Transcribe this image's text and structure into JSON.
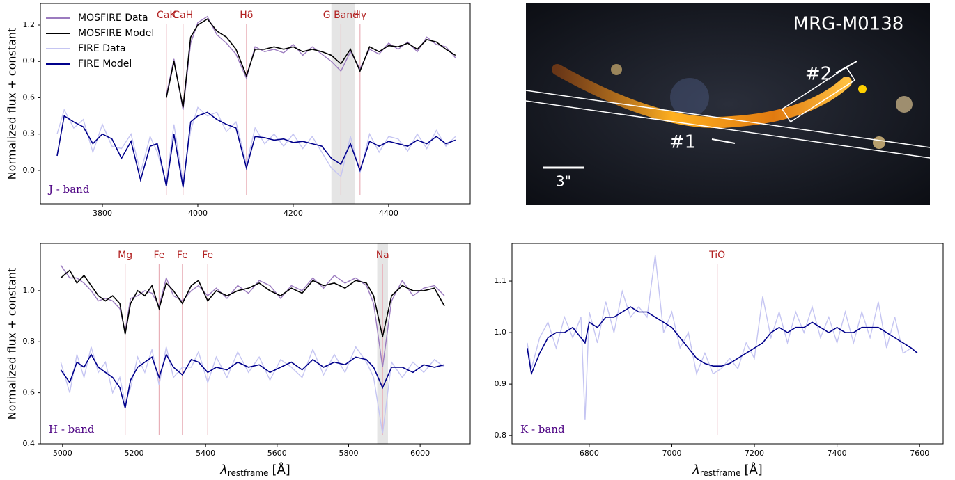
{
  "chart_data": [
    {
      "type": "line",
      "ylabel": "Normalized flux + constant",
      "band_label": "J - band",
      "legend": "upper left",
      "xlim": [
        3670,
        4571
      ],
      "ylim": [
        -0.276,
        1.378
      ],
      "xticks": [
        3800,
        4000,
        4200,
        4400
      ],
      "yticks": [
        {
          "value": 0,
          "label": "0.0"
        },
        0.3,
        0.6,
        0.9,
        1.2
      ],
      "span": [
        4280,
        4330
      ],
      "lines": [
        {
          "label": "CaK",
          "x": 3934
        },
        {
          "label": "CaH",
          "x": 3969
        },
        {
          "label": "Hδ",
          "x": 4102
        },
        {
          "label": "G Band",
          "x": 4300
        },
        {
          "label": "Hγ",
          "x": 4340
        }
      ],
      "x": [
        3705,
        3720,
        3740,
        3760,
        3780,
        3800,
        3820,
        3840,
        3860,
        3880,
        3900,
        3915,
        3934,
        3950,
        3969,
        3985,
        4000,
        4020,
        4040,
        4060,
        4080,
        4102,
        4120,
        4140,
        4160,
        4180,
        4200,
        4220,
        4240,
        4260,
        4280,
        4300,
        4320,
        4340,
        4360,
        4380,
        4400,
        4420,
        4440,
        4460,
        4480,
        4500,
        4520,
        4540
      ],
      "series": [
        {
          "name": "MOSFIRE Data",
          "color": "#9b7bbf",
          "values": [
            null,
            null,
            null,
            null,
            null,
            null,
            null,
            null,
            null,
            null,
            null,
            null,
            0.62,
            0.92,
            0.5,
            1.05,
            1.22,
            1.27,
            1.12,
            1.05,
            0.96,
            0.76,
            1.02,
            0.98,
            1.0,
            0.97,
            1.04,
            0.95,
            1.02,
            0.96,
            0.9,
            0.82,
            0.98,
            0.84,
            1.0,
            0.96,
            1.05,
            1.0,
            1.06,
            0.98,
            1.1,
            1.04,
            1.02,
            0.93
          ]
        },
        {
          "name": "MOSFIRE Model",
          "color": "#000000",
          "values": [
            null,
            null,
            null,
            null,
            null,
            null,
            null,
            null,
            null,
            null,
            null,
            null,
            0.6,
            0.9,
            0.52,
            1.1,
            1.2,
            1.25,
            1.15,
            1.1,
            1.0,
            0.78,
            1.0,
            1.0,
            1.02,
            1.0,
            1.02,
            0.98,
            1.0,
            0.98,
            0.95,
            0.88,
            1.0,
            0.82,
            1.02,
            0.98,
            1.03,
            1.02,
            1.05,
            1.0,
            1.08,
            1.06,
            1.0,
            0.95
          ]
        },
        {
          "name": "FIRE Data",
          "color": "#c5c5f2",
          "values": [
            0.3,
            0.5,
            0.35,
            0.42,
            0.15,
            0.38,
            0.2,
            0.18,
            0.3,
            -0.02,
            0.28,
            0.15,
            -0.1,
            0.38,
            -0.1,
            0.33,
            0.52,
            0.45,
            0.48,
            0.32,
            0.4,
            0.05,
            0.35,
            0.22,
            0.3,
            0.2,
            0.3,
            0.18,
            0.28,
            0.15,
            0.02,
            -0.05,
            0.28,
            -0.02,
            0.3,
            0.15,
            0.28,
            0.26,
            0.16,
            0.3,
            0.18,
            0.33,
            0.2,
            0.28
          ]
        },
        {
          "name": "FIRE Model",
          "color": "#00008b",
          "values": [
            0.12,
            0.45,
            0.4,
            0.36,
            0.22,
            0.3,
            0.26,
            0.1,
            0.24,
            -0.08,
            0.2,
            0.22,
            -0.13,
            0.3,
            -0.14,
            0.4,
            0.45,
            0.48,
            0.42,
            0.38,
            0.35,
            0.02,
            0.28,
            0.27,
            0.25,
            0.26,
            0.23,
            0.24,
            0.22,
            0.2,
            0.1,
            0.05,
            0.22,
            0.0,
            0.24,
            0.2,
            0.24,
            0.22,
            0.2,
            0.25,
            0.22,
            0.28,
            0.22,
            0.25
          ]
        }
      ]
    },
    {
      "type": "line",
      "ylabel": "Normalized flux + constant",
      "band_label": "H - band",
      "xlabel": {
        "symbol": "λ",
        "subscript": "restframe",
        "unit": "[Å]"
      },
      "xlim": [
        4938,
        6140
      ],
      "ylim": [
        0.4,
        1.185
      ],
      "xticks": [
        5000,
        5200,
        5400,
        5600,
        5800,
        6000
      ],
      "yticks": [
        0.4,
        0.6,
        0.8,
        {
          "value": 1,
          "label": "1.0"
        }
      ],
      "span": [
        5880,
        5910
      ],
      "lines": [
        {
          "label": "Mg",
          "x": 5175
        },
        {
          "label": "Fe",
          "x": 5270
        },
        {
          "label": "Fe",
          "x": 5335
        },
        {
          "label": "Fe",
          "x": 5406
        },
        {
          "label": "Na",
          "x": 5895
        }
      ],
      "x": [
        4995,
        5020,
        5040,
        5060,
        5080,
        5100,
        5120,
        5140,
        5160,
        5175,
        5190,
        5210,
        5230,
        5250,
        5270,
        5290,
        5310,
        5335,
        5360,
        5380,
        5406,
        5430,
        5460,
        5490,
        5520,
        5550,
        5580,
        5610,
        5640,
        5670,
        5700,
        5730,
        5760,
        5790,
        5820,
        5850,
        5870,
        5895,
        5920,
        5950,
        5980,
        6010,
        6040,
        6068
      ],
      "series": [
        {
          "color": "#9b7bbf",
          "values": [
            1.1,
            1.05,
            1.05,
            1.03,
            1.0,
            0.96,
            0.97,
            0.96,
            0.93,
            0.84,
            0.97,
            0.98,
            1.0,
            0.99,
            0.94,
            1.05,
            0.98,
            0.96,
            1.0,
            1.02,
            0.98,
            1.01,
            0.97,
            1.02,
            0.99,
            1.04,
            1.02,
            0.97,
            1.02,
            1.0,
            1.05,
            1.01,
            1.06,
            1.03,
            1.05,
            1.02,
            0.95,
            0.7,
            0.96,
            1.04,
            0.98,
            1.01,
            1.02,
            0.98
          ]
        },
        {
          "color": "#000000",
          "values": [
            1.05,
            1.08,
            1.03,
            1.06,
            1.02,
            0.98,
            0.96,
            0.98,
            0.95,
            0.83,
            0.95,
            1.0,
            0.98,
            1.02,
            0.93,
            1.03,
            1.0,
            0.95,
            1.02,
            1.04,
            0.96,
            1.0,
            0.98,
            1.0,
            1.01,
            1.03,
            1.0,
            0.98,
            1.01,
            0.99,
            1.04,
            1.02,
            1.03,
            1.01,
            1.04,
            1.03,
            0.98,
            0.82,
            0.98,
            1.02,
            1.0,
            1.0,
            1.01,
            0.94
          ]
        },
        {
          "color": "#c5c5f2",
          "values": [
            0.72,
            0.6,
            0.75,
            0.66,
            0.78,
            0.68,
            0.72,
            0.6,
            0.66,
            0.56,
            0.62,
            0.74,
            0.68,
            0.77,
            0.63,
            0.78,
            0.66,
            0.7,
            0.7,
            0.76,
            0.64,
            0.74,
            0.66,
            0.76,
            0.68,
            0.74,
            0.65,
            0.73,
            0.7,
            0.66,
            0.77,
            0.67,
            0.75,
            0.68,
            0.78,
            0.72,
            0.66,
            0.44,
            0.72,
            0.66,
            0.72,
            0.68,
            0.73,
            0.7
          ]
        },
        {
          "color": "#00008b",
          "values": [
            0.69,
            0.64,
            0.72,
            0.7,
            0.75,
            0.7,
            0.68,
            0.66,
            0.62,
            0.54,
            0.65,
            0.7,
            0.72,
            0.74,
            0.66,
            0.75,
            0.7,
            0.67,
            0.73,
            0.72,
            0.68,
            0.7,
            0.69,
            0.72,
            0.7,
            0.71,
            0.68,
            0.7,
            0.72,
            0.69,
            0.73,
            0.7,
            0.72,
            0.71,
            0.74,
            0.73,
            0.7,
            0.62,
            0.7,
            0.7,
            0.68,
            0.71,
            0.7,
            0.71
          ]
        }
      ]
    },
    {
      "type": "line",
      "band_label": "K - band",
      "xlabel": {
        "symbol": "λ",
        "subscript": "restframe",
        "unit": "[Å]"
      },
      "xlim": [
        6613,
        7657
      ],
      "ylim": [
        0.784,
        1.173
      ],
      "xticks": [
        6800,
        7000,
        7200,
        7400,
        7600
      ],
      "yticks": [
        0.8,
        0.9,
        {
          "value": 1,
          "label": "1.0"
        },
        1.1
      ],
      "lines": [
        {
          "label": "TiO",
          "x": 7110
        }
      ],
      "x": [
        6650,
        6660,
        6680,
        6700,
        6720,
        6740,
        6760,
        6780,
        6790,
        6800,
        6820,
        6840,
        6860,
        6880,
        6900,
        6920,
        6940,
        6960,
        6980,
        7000,
        7020,
        7040,
        7060,
        7080,
        7100,
        7120,
        7140,
        7160,
        7180,
        7200,
        7220,
        7240,
        7260,
        7280,
        7300,
        7320,
        7340,
        7360,
        7380,
        7400,
        7420,
        7440,
        7460,
        7480,
        7500,
        7520,
        7540,
        7560,
        7580,
        7595
      ],
      "series": [
        {
          "color": "#c5c5f2",
          "values": [
            0.98,
            0.93,
            0.99,
            1.02,
            0.97,
            1.03,
            0.99,
            1.03,
            0.83,
            1.04,
            0.98,
            1.06,
            1.0,
            1.08,
            1.03,
            1.05,
            1.03,
            1.15,
            1.0,
            1.04,
            0.97,
            1.0,
            0.92,
            0.96,
            0.92,
            0.93,
            0.95,
            0.93,
            0.98,
            0.95,
            1.07,
            0.99,
            1.04,
            0.98,
            1.04,
            1.0,
            1.05,
            0.99,
            1.03,
            0.98,
            1.04,
            0.98,
            1.04,
            0.99,
            1.06,
            0.97,
            1.03,
            0.96,
            0.97,
            0.96
          ]
        },
        {
          "color": "#00008b",
          "values": [
            0.97,
            0.92,
            0.96,
            0.99,
            1.0,
            1.0,
            1.01,
            0.99,
            0.98,
            1.02,
            1.01,
            1.03,
            1.03,
            1.04,
            1.05,
            1.04,
            1.04,
            1.03,
            1.02,
            1.01,
            0.99,
            0.97,
            0.95,
            0.94,
            0.935,
            0.935,
            0.94,
            0.95,
            0.96,
            0.97,
            0.98,
            1.0,
            1.01,
            1.0,
            1.01,
            1.01,
            1.02,
            1.01,
            1.0,
            1.01,
            1.0,
            1.0,
            1.01,
            1.01,
            1.01,
            1.0,
            0.99,
            0.98,
            0.97,
            0.96
          ]
        }
      ]
    }
  ],
  "image": {
    "title": "MRG-M0138",
    "labels": [
      "#2",
      "#1",
      "3\""
    ]
  }
}
